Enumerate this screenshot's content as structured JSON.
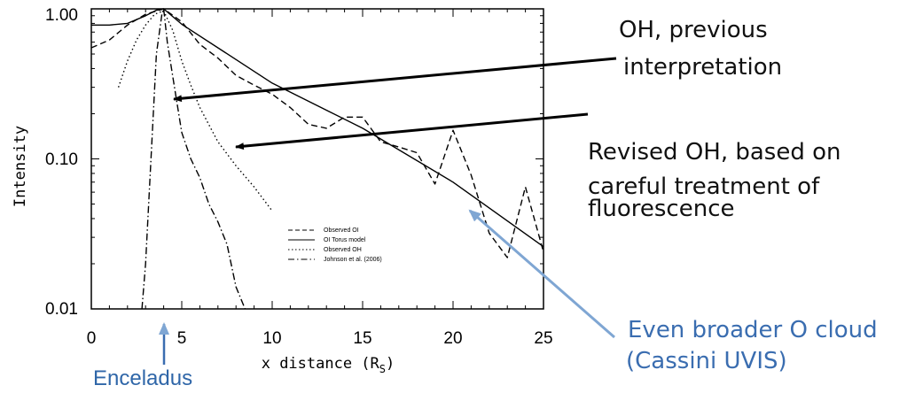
{
  "chart_data": {
    "type": "line",
    "xlabel": "x distance (R",
    "xlabel_sub": "S",
    "xlabel_close": ")",
    "ylabel": "Intensity",
    "xlim": [
      0,
      25
    ],
    "ylim": [
      0.01,
      1.0
    ],
    "yscale": "log",
    "xticks": [
      0,
      5,
      10,
      15,
      20,
      25
    ],
    "yticks": [
      {
        "value": 1.0,
        "label": "1.00"
      },
      {
        "value": 0.1,
        "label": "0.10"
      },
      {
        "value": 0.01,
        "label": "0.01"
      }
    ],
    "grid": false,
    "legend": {
      "placement": "lower-center",
      "entries": [
        "Observed OI",
        "OI Torus model",
        "Observed OH",
        "Johnson et al. (2006)"
      ]
    },
    "series": [
      {
        "name": "Observed OI",
        "style": "dashed",
        "x": [
          0,
          1,
          2,
          3,
          4,
          5,
          6,
          7,
          8,
          9,
          10,
          11,
          12,
          13,
          14,
          15,
          16,
          17,
          18,
          19,
          20,
          21,
          22,
          23,
          24,
          25
        ],
        "y": [
          0.55,
          0.62,
          0.78,
          0.92,
          1.0,
          0.82,
          0.58,
          0.47,
          0.36,
          0.31,
          0.27,
          0.22,
          0.17,
          0.16,
          0.19,
          0.19,
          0.13,
          0.12,
          0.11,
          0.068,
          0.155,
          0.078,
          0.032,
          0.022,
          0.065,
          0.024
        ]
      },
      {
        "name": "OI Torus model",
        "style": "solid",
        "x": [
          0,
          1,
          2,
          3,
          3.6,
          4,
          5,
          10,
          15,
          20,
          25
        ],
        "y": [
          0.78,
          0.78,
          0.8,
          0.9,
          0.98,
          1.0,
          0.79,
          0.32,
          0.16,
          0.07,
          0.026
        ]
      },
      {
        "name": "Observed OH",
        "style": "dotted",
        "x": [
          1.5,
          2,
          2.5,
          3,
          3.5,
          4,
          4.5,
          5,
          5.5,
          6,
          7,
          8,
          9,
          10
        ],
        "y": [
          0.3,
          0.45,
          0.62,
          0.78,
          0.92,
          0.97,
          0.72,
          0.45,
          0.31,
          0.22,
          0.13,
          0.09,
          0.065,
          0.045
        ]
      },
      {
        "name": "Johnson et al. (2006)",
        "style": "dash-dot",
        "x": [
          2.8,
          3.0,
          3.3,
          3.6,
          3.9,
          4.0,
          4.2,
          4.6,
          5.0,
          5.5,
          6.0,
          6.5,
          7.0,
          7.5,
          8.0,
          8.5
        ],
        "y": [
          0.01,
          0.02,
          0.1,
          0.5,
          0.92,
          1.0,
          0.6,
          0.3,
          0.15,
          0.1,
          0.075,
          0.05,
          0.038,
          0.027,
          0.014,
          0.01
        ]
      }
    ]
  },
  "annotations": {
    "oh_previous": [
      "OH, previous",
      "interpretation"
    ],
    "oh_revised": [
      "Revised OH, based on",
      "careful treatment of",
      "fluorescence"
    ],
    "broader_cloud": [
      "Even broader O cloud",
      "(Cassini UVIS)"
    ],
    "enceladus": "Enceladus"
  },
  "colors": {
    "annotation_blue": "#3a6db0",
    "arrow_blue": "#7fa6d3",
    "line": "#000000"
  }
}
